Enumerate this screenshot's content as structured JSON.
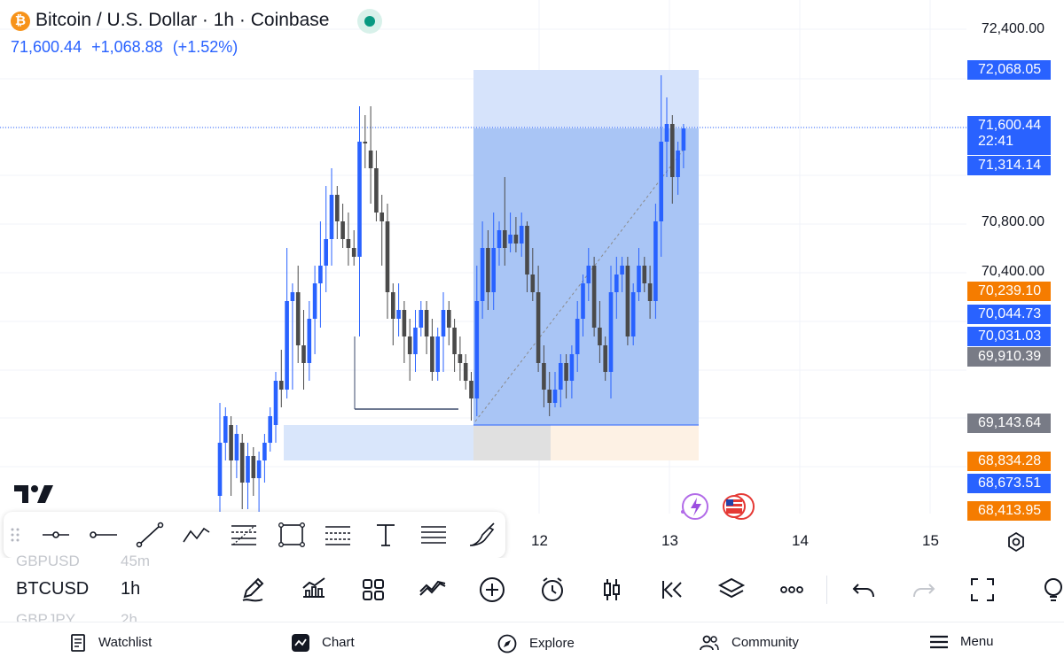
{
  "header": {
    "title": "Bitcoin / U.S. Dollar · 1h · Coinbase",
    "price": "71,600.44",
    "change": "+1,068.88",
    "change_pct": "(+1.52%)"
  },
  "colors": {
    "up": "#2962ff",
    "down": "#4a4a4a",
    "accent": "#2962ff",
    "orange": "#f57c00",
    "grey_tag": "#787b86",
    "dark_grey_tag": "#5d606b"
  },
  "price_axis": [
    "72,400.00",
    "70,800.00",
    "70,400.00"
  ],
  "price_tags": {
    "tag1": "72,068.05",
    "tag2": "71,600.44",
    "tag2_time": "22:41",
    "tag3": "71,314.14",
    "tag4": "70,239.10",
    "tag5": "70,044.73",
    "tag6": "70,031.03",
    "tag7": "69,910.39",
    "tag8": "69,143.64",
    "tag9": "68,834.28",
    "tag10": "68,673.51",
    "tag11": "68,413.95"
  },
  "time_axis": [
    "12",
    "13",
    "14",
    "15"
  ],
  "drawing_tools": [
    "pointer-line-icon",
    "horizontal-ray-icon",
    "trend-line-icon",
    "zigzag-icon",
    "fib-retracement-icon",
    "rectangle-icon",
    "fib-channel-icon",
    "text-icon",
    "parallel-channel-icon",
    "brush-icon"
  ],
  "symbol_bar": {
    "prev_symbol": "GBPUSD",
    "prev_tf": "45m",
    "symbol": "BTCUSD",
    "timeframe": "1h",
    "next_symbol": "GBPJPY",
    "next_tf": "2h"
  },
  "nav": {
    "watchlist": "Watchlist",
    "chart": "Chart",
    "explore": "Explore",
    "community": "Community",
    "menu": "Menu"
  }
}
